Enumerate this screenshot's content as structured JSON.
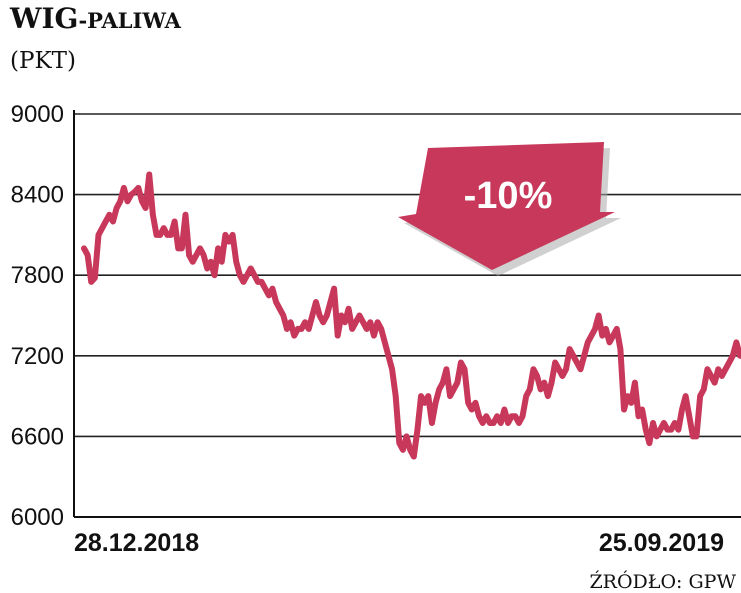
{
  "chart_data": {
    "type": "line",
    "title_main": "WIG",
    "title_suffix": "-PALIWA",
    "unit": "(PKT)",
    "source": "ŹRÓDŁO: GPW",
    "callout": "-10%",
    "x_labels": [
      "28.12.2018",
      "25.09.2019"
    ],
    "ylim": [
      6000,
      9000
    ],
    "y_ticks": [
      "9000",
      "8400",
      "7800",
      "7200",
      "6600",
      "6000"
    ],
    "grid": true,
    "series": [
      {
        "color": "#c8385a",
        "values": [
          8000,
          7950,
          7750,
          7780,
          8100,
          8150,
          8200,
          8250,
          8200,
          8300,
          8350,
          8450,
          8350,
          8400,
          8420,
          8450,
          8350,
          8300,
          8550,
          8250,
          8100,
          8100,
          8150,
          8100,
          8100,
          8200,
          8000,
          8000,
          8250,
          7950,
          7900,
          7950,
          8000,
          7950,
          7850,
          7900,
          7800,
          8000,
          7900,
          8100,
          8050,
          8100,
          7900,
          7800,
          7750,
          7800,
          7850,
          7800,
          7750,
          7750,
          7700,
          7650,
          7700,
          7600,
          7550,
          7500,
          7400,
          7450,
          7350,
          7400,
          7400,
          7450,
          7400,
          7500,
          7600,
          7500,
          7450,
          7500,
          7600,
          7700,
          7350,
          7500,
          7450,
          7550,
          7400,
          7450,
          7500,
          7450,
          7400,
          7450,
          7350,
          7450,
          7400,
          7300,
          7200,
          7100,
          6900,
          6550,
          6500,
          6600,
          6500,
          6450,
          6650,
          6900,
          6850,
          6900,
          6700,
          6850,
          6950,
          7000,
          7100,
          6900,
          6950,
          7000,
          7150,
          7100,
          6850,
          6800,
          6850,
          6750,
          6700,
          6750,
          6700,
          6700,
          6750,
          6700,
          6800,
          6700,
          6750,
          6750,
          6700,
          6750,
          6900,
          6950,
          7100,
          7050,
          6950,
          7000,
          6900,
          7000,
          7150,
          7100,
          7050,
          7100,
          7250,
          7200,
          7150,
          7100,
          7200,
          7300,
          7350,
          7400,
          7500,
          7350,
          7400,
          7300,
          7350,
          7400,
          7250,
          6800,
          6900,
          6850,
          7000,
          6750,
          6800,
          6650,
          6550,
          6700,
          6600,
          6650,
          6700,
          6650,
          6650,
          6700,
          6650,
          6800,
          6900,
          6750,
          6600,
          6600,
          6900,
          6950,
          7100,
          7050,
          7000,
          7100,
          7050,
          7100,
          7150,
          7200,
          7300,
          7200
        ]
      }
    ]
  }
}
